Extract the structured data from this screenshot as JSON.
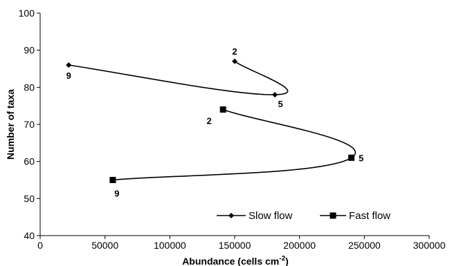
{
  "chart_data": {
    "type": "scatter",
    "title": "",
    "xlabel": "Abundance (cells cm",
    "xlabel_sup": "-2",
    "xlabel_close": ")",
    "ylabel": "Number of taxa",
    "xlim": [
      0,
      300000
    ],
    "ylim": [
      40,
      100
    ],
    "x_ticks": [
      "0",
      "50000",
      "100000",
      "150000",
      "200000",
      "250000",
      "300000"
    ],
    "y_ticks": [
      "40",
      "50",
      "60",
      "70",
      "80",
      "90",
      "100"
    ],
    "grid": false,
    "legend_position": "bottom-right",
    "series": [
      {
        "name": "Slow flow",
        "marker": "diamond",
        "points": [
          {
            "x": 150000,
            "y": 87,
            "label": "2"
          },
          {
            "x": 181000,
            "y": 78,
            "label": "5"
          },
          {
            "x": 22000,
            "y": 86,
            "label": "9"
          }
        ]
      },
      {
        "name": "Fast flow",
        "marker": "square",
        "points": [
          {
            "x": 141000,
            "y": 74,
            "label": "2"
          },
          {
            "x": 240000,
            "y": 61,
            "label": "5"
          },
          {
            "x": 56000,
            "y": 55,
            "label": "9"
          }
        ]
      }
    ]
  }
}
